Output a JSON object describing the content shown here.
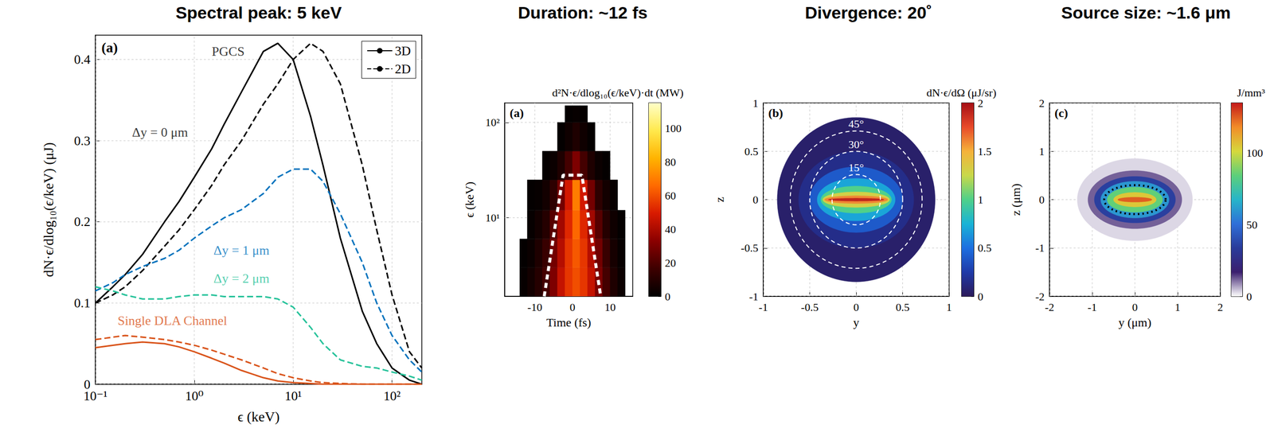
{
  "chart_data": [
    {
      "type": "line",
      "title": "Spectral peak: 5 keV",
      "panel": "(a)",
      "x_label": "ϵ (keV)",
      "y_label": "dN·ϵ/dlog₁₀(ϵ/keV) (μJ)",
      "log": "x",
      "grid": true,
      "legend": "upper right",
      "xlim": [
        0.1,
        200
      ],
      "xticks": [
        {
          "value": 0.1,
          "label": "10⁻¹"
        },
        {
          "value": 1,
          "label": "10⁰"
        },
        {
          "value": 10,
          "label": "10¹"
        },
        {
          "value": 100,
          "label": "10²"
        }
      ],
      "ylim": [
        0,
        0.43
      ],
      "yticks": [
        0,
        0.1,
        0.2,
        0.3,
        0.4
      ],
      "x": [
        0.1,
        0.15,
        0.2,
        0.3,
        0.5,
        0.7,
        1,
        1.5,
        2,
        3,
        5,
        7,
        10,
        15,
        20,
        30,
        50,
        70,
        100,
        150,
        200
      ],
      "series": [
        {
          "name": "3D",
          "color": "#000000",
          "line_style": "solid",
          "values": [
            0.1,
            0.12,
            0.135,
            0.16,
            0.2,
            0.225,
            0.255,
            0.29,
            0.32,
            0.36,
            0.41,
            0.42,
            0.4,
            0.33,
            0.27,
            0.18,
            0.09,
            0.05,
            0.02,
            0.005,
            0
          ]
        },
        {
          "name": "2D",
          "color": "#000000",
          "line_style": "dashed",
          "values": [
            0.1,
            0.11,
            0.12,
            0.14,
            0.17,
            0.19,
            0.215,
            0.245,
            0.27,
            0.3,
            0.345,
            0.37,
            0.4,
            0.42,
            0.41,
            0.37,
            0.27,
            0.19,
            0.11,
            0.04,
            0.02
          ]
        },
        {
          "name": "2D",
          "color": "#0072bd",
          "line_style": "dashed",
          "values": [
            0.115,
            0.125,
            0.135,
            0.145,
            0.155,
            0.165,
            0.18,
            0.195,
            0.205,
            0.215,
            0.235,
            0.255,
            0.265,
            0.265,
            0.25,
            0.21,
            0.15,
            0.1,
            0.06,
            0.03,
            0.015
          ]
        },
        {
          "name": "2D",
          "color": "#26c29a",
          "line_style": "dashed",
          "values": [
            0.12,
            0.115,
            0.11,
            0.105,
            0.105,
            0.108,
            0.11,
            0.11,
            0.108,
            0.108,
            0.108,
            0.105,
            0.095,
            0.07,
            0.05,
            0.03,
            0.022,
            0.02,
            0.015,
            0.01,
            0.005
          ]
        },
        {
          "name": "3D",
          "color": "#d95319",
          "line_style": "solid",
          "values": [
            0.045,
            0.048,
            0.05,
            0.052,
            0.05,
            0.046,
            0.04,
            0.032,
            0.026,
            0.017,
            0.008,
            0.004,
            0.002,
            0.001,
            0,
            0,
            0,
            0,
            0,
            0,
            0
          ]
        },
        {
          "name": "2D",
          "color": "#d95319",
          "line_style": "dashed",
          "values": [
            0.055,
            0.058,
            0.06,
            0.058,
            0.055,
            0.052,
            0.048,
            0.042,
            0.037,
            0.03,
            0.02,
            0.013,
            0.008,
            0.004,
            0.002,
            0.001,
            0,
            0,
            0,
            0,
            0
          ]
        }
      ],
      "annotations": [
        {
          "text": "PGCS",
          "x": 2.2,
          "y": 0.41,
          "color": "#000000"
        },
        {
          "text": "Δy = 0 μm",
          "x": 0.45,
          "y": 0.31,
          "color": "#000000"
        },
        {
          "text": "Δy = 1 μm",
          "x": 3,
          "y": 0.165,
          "color": "#0072bd"
        },
        {
          "text": "Δy = 2 μm",
          "x": 3,
          "y": 0.13,
          "color": "#26c29a"
        },
        {
          "text": "Single DLA Channel",
          "x": 0.6,
          "y": 0.078,
          "color": "#d95319"
        }
      ]
    },
    {
      "type": "heatmap",
      "title": "Duration: ~12 fs",
      "panel": "(a)",
      "x_label": "Time (fs)",
      "y_label": "ϵ (keV)",
      "log": "y",
      "grid": true,
      "xlim": [
        -18,
        16
      ],
      "xticks": [
        -10,
        0,
        10
      ],
      "ylim": [
        1.5,
        160
      ],
      "yticks": [
        {
          "value": 10,
          "label": "10¹"
        },
        {
          "value": 100,
          "label": "10²"
        }
      ],
      "time_bins": [
        -14,
        -12,
        -10,
        -8,
        -6,
        -4,
        -2,
        0,
        2,
        4,
        6,
        8,
        10,
        12,
        14
      ],
      "energy_bins": [
        1.5,
        3,
        6,
        12,
        25,
        50,
        100,
        150
      ],
      "cells": [
        [
          2,
          5,
          10,
          18,
          30,
          45,
          55,
          60,
          55,
          45,
          30,
          18,
          8,
          3
        ],
        [
          1,
          3,
          8,
          15,
          28,
          42,
          55,
          62,
          55,
          42,
          28,
          15,
          6,
          2
        ],
        [
          0,
          2,
          5,
          10,
          22,
          38,
          52,
          65,
          52,
          38,
          22,
          10,
          4,
          1
        ],
        [
          0,
          1,
          2,
          5,
          12,
          28,
          48,
          70,
          48,
          28,
          12,
          5,
          2,
          0
        ],
        [
          0,
          0,
          0,
          1,
          3,
          8,
          18,
          30,
          18,
          8,
          3,
          1,
          0,
          0
        ],
        [
          0,
          0,
          0,
          0,
          0,
          1,
          4,
          8,
          4,
          1,
          0,
          0,
          0,
          0
        ],
        [
          0,
          0,
          0,
          0,
          0,
          0,
          1,
          2,
          1,
          0,
          0,
          0,
          0,
          0
        ]
      ],
      "fwhm_outline": {
        "x": [
          -7.5,
          -2.5,
          2.5,
          7.5
        ],
        "y": [
          1.5,
          28,
          28,
          1.5
        ]
      },
      "colorbar": {
        "title": "d²N·ϵ/dlog₁₀(ϵ/keV)·dt (MW)",
        "range": [
          0,
          115
        ],
        "ticks": [
          0,
          20,
          40,
          60,
          80,
          100
        ]
      }
    },
    {
      "type": "density",
      "title": "Divergence: 20˚",
      "panel": "(b)",
      "x_label": "y",
      "y_label": "z",
      "grid": true,
      "xlim": [
        -1,
        1
      ],
      "xticks": [
        -1,
        -0.5,
        0,
        0.5,
        1
      ],
      "ylim": [
        -1,
        1
      ],
      "yticks": [
        -1,
        -0.5,
        0,
        0.5,
        1
      ],
      "disk": {
        "radius": 0.85,
        "value": 0.05
      },
      "levels": [
        {
          "value": 0.15,
          "ry": 0.62,
          "rz": 0.5
        },
        {
          "value": 0.4,
          "ry": 0.5,
          "rz": 0.34
        },
        {
          "value": 0.7,
          "ry": 0.42,
          "rz": 0.22
        },
        {
          "value": 1.0,
          "ry": 0.38,
          "rz": 0.14
        },
        {
          "value": 1.3,
          "ry": 0.36,
          "rz": 0.08
        },
        {
          "value": 1.6,
          "ry": 0.34,
          "rz": 0.04
        },
        {
          "value": 1.9,
          "ry": 0.3,
          "rz": 0.015
        }
      ],
      "rings": [
        {
          "radius": 0.26,
          "label": "15°"
        },
        {
          "radius": 0.5,
          "label": "30°"
        },
        {
          "radius": 0.71,
          "label": "45°"
        }
      ],
      "colorbar": {
        "title": "dN·ϵ/dΩ (μJ/sr)",
        "range": [
          0,
          2
        ],
        "ticks": [
          0,
          0.5,
          1,
          1.5,
          2
        ]
      }
    },
    {
      "type": "density",
      "title": "Source size: ~1.6 μm",
      "panel": "(c)",
      "x_label": "y (μm)",
      "y_label": "z (μm)",
      "grid": true,
      "xlim": [
        -2,
        2
      ],
      "xticks": [
        -2,
        -1,
        0,
        1,
        2
      ],
      "ylim": [
        -2,
        2
      ],
      "yticks": [
        -2,
        -1,
        0,
        1,
        2
      ],
      "levels": [
        {
          "value": 3,
          "ry": 1.35,
          "rz": 0.85
        },
        {
          "value": 12,
          "ry": 1.1,
          "rz": 0.6
        },
        {
          "value": 35,
          "ry": 0.95,
          "rz": 0.48
        },
        {
          "value": 60,
          "ry": 0.8,
          "rz": 0.38
        },
        {
          "value": 85,
          "ry": 0.65,
          "rz": 0.26
        },
        {
          "value": 105,
          "ry": 0.5,
          "rz": 0.15
        },
        {
          "value": 125,
          "ry": 0.4,
          "rz": 0.05
        }
      ],
      "outline": {
        "ry": 0.72,
        "rz": 0.3
      },
      "colorbar": {
        "title": "J/mm³",
        "range": [
          0,
          135
        ],
        "ticks": [
          0,
          50,
          100
        ]
      }
    }
  ]
}
